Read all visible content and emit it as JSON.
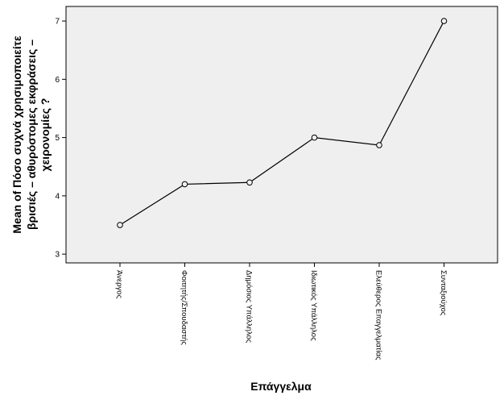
{
  "chart_data": {
    "type": "line",
    "categories": [
      "Άνεργος",
      "Φοιτητής/Σπουδαστής",
      "Δημόσιος Υπάλληλος",
      "Ιδιωτικός Υπάλληλος",
      "Ελεύθερος Επαγγελματίας",
      "Συνταξιούχος"
    ],
    "values": [
      3.5,
      4.2,
      4.23,
      5.0,
      4.87,
      7.0
    ],
    "xlabel": "Επάγγελμα",
    "ylabel_lines": [
      "Mean of Πόσο συχνά χρησιμοποιείτε",
      "βρισιές – αθυρόστομες εκφράσεις –",
      "χειρονομίες ?"
    ],
    "y_ticks": [
      3,
      4,
      5,
      6,
      7
    ],
    "ylim": [
      2.85,
      7.25
    ],
    "grid": false,
    "colors": {
      "plot_bg": "#efefef",
      "line": "#000000",
      "marker_fill": "#efefef"
    },
    "marker": "circle"
  }
}
